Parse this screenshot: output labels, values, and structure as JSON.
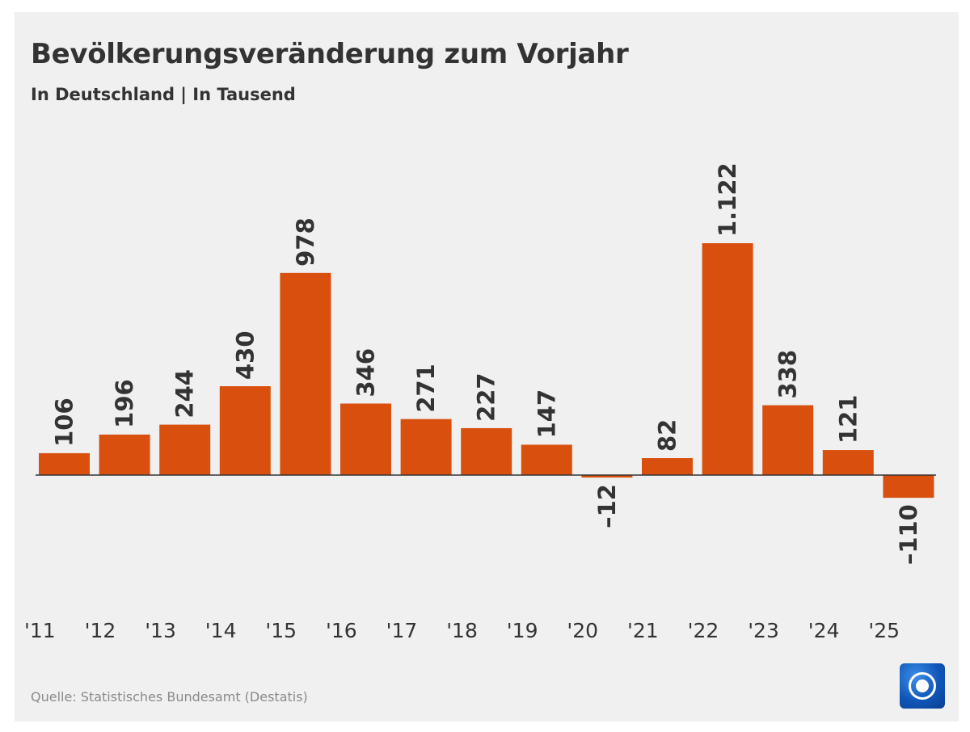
{
  "header": {
    "title": "Bevölkerungsveränderung zum Vorjahr",
    "subtitle": "In Deutschland | In Tausend"
  },
  "footer": {
    "source": "Quelle: Statistisches Bundesamt (Destatis)",
    "logo_icon": "tagesschau-logo-icon"
  },
  "chart_data": {
    "type": "bar",
    "title": "Bevölkerungsveränderung zum Vorjahr",
    "subtitle": "In Deutschland | In Tausend",
    "categories": [
      "'11",
      "'12",
      "'13",
      "'14",
      "'15",
      "'16",
      "'17",
      "'18",
      "'19",
      "'20",
      "'21",
      "'22",
      "'23",
      "'24",
      "'25"
    ],
    "values": [
      106,
      196,
      244,
      430,
      978,
      346,
      271,
      227,
      147,
      -12,
      82,
      1122,
      338,
      121,
      -110
    ],
    "value_labels": [
      "106",
      "196",
      "244",
      "430",
      "978",
      "346",
      "271",
      "227",
      "147",
      "–12",
      "82",
      "1.122",
      "338",
      "121",
      "–110"
    ],
    "xlabel": "",
    "ylabel": "",
    "grid": false,
    "legend": "none",
    "bar_color": "#d9500e",
    "zero_line_color": "#333333"
  }
}
